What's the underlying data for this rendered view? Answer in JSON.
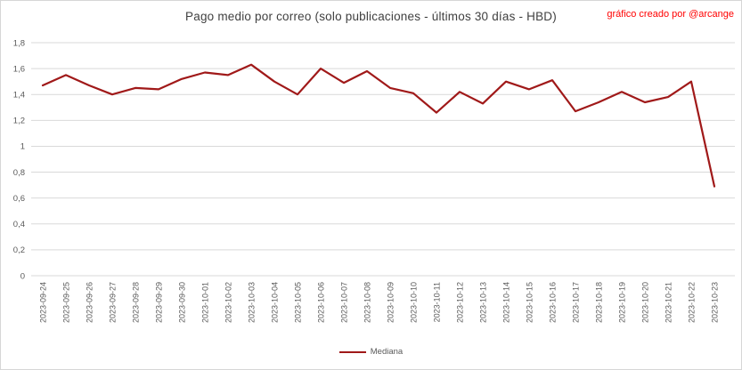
{
  "header": {
    "title": "Pago medio por correo (solo publicaciones - últimos 30 días - HBD)",
    "credit": "gráfico creado por @arcange"
  },
  "legend": {
    "label": "Mediana"
  },
  "colors": {
    "line": "#a01919",
    "grid": "#d9d9d9",
    "axis_text": "#595959",
    "title_text": "#404040",
    "credit_text": "#ff0000",
    "border": "#d6d6d6"
  },
  "chart_data": {
    "type": "line",
    "title": "Pago medio por correo (solo publicaciones - últimos 30 días - HBD)",
    "xlabel": "",
    "ylabel": "",
    "ylim": [
      0,
      1.8
    ],
    "grid": "horizontal",
    "legend_position": "bottom",
    "categories": [
      "2023-09-24",
      "2023-09-25",
      "2023-09-26",
      "2023-09-27",
      "2023-09-28",
      "2023-09-29",
      "2023-09-30",
      "2023-10-01",
      "2023-10-02",
      "2023-10-03",
      "2023-10-04",
      "2023-10-05",
      "2023-10-06",
      "2023-10-07",
      "2023-10-08",
      "2023-10-09",
      "2023-10-10",
      "2023-10-11",
      "2023-10-12",
      "2023-10-13",
      "2023-10-14",
      "2023-10-15",
      "2023-10-16",
      "2023-10-17",
      "2023-10-18",
      "2023-10-19",
      "2023-10-20",
      "2023-10-21",
      "2023-10-22",
      "2023-10-23"
    ],
    "series": [
      {
        "name": "Mediana",
        "values": [
          1.47,
          1.55,
          1.47,
          1.4,
          1.45,
          1.44,
          1.52,
          1.57,
          1.55,
          1.63,
          1.5,
          1.4,
          1.6,
          1.49,
          1.58,
          1.45,
          1.41,
          1.26,
          1.42,
          1.33,
          1.5,
          1.44,
          1.51,
          1.27,
          1.34,
          1.42,
          1.34,
          1.38,
          1.5,
          0.69
        ]
      }
    ],
    "y_axis": {
      "ticks": [
        {
          "label": "1,8",
          "value": 1.8
        },
        {
          "label": "1,6",
          "value": 1.6
        },
        {
          "label": "1,4",
          "value": 1.4
        },
        {
          "label": "1,2",
          "value": 1.2
        },
        {
          "label": "1",
          "value": 1.0
        },
        {
          "label": "0,8",
          "value": 0.8
        },
        {
          "label": "0,6",
          "value": 0.6
        },
        {
          "label": "0,4",
          "value": 0.4
        },
        {
          "label": "0,2",
          "value": 0.2
        },
        {
          "label": "0",
          "value": 0.0
        }
      ]
    }
  }
}
